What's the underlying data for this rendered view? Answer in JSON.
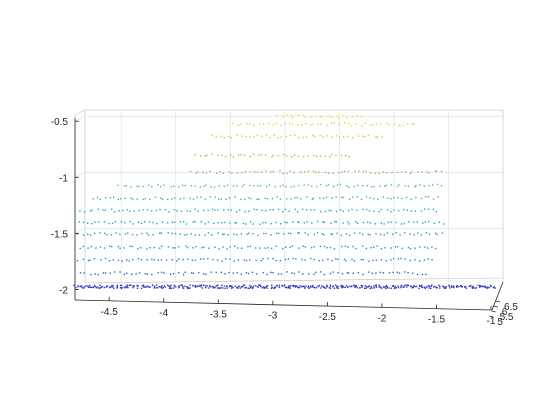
{
  "chart_data": {
    "type": "scatter",
    "title": "",
    "xlabel": "",
    "ylabel": "",
    "zlabel": "",
    "grid": true,
    "colormap": [
      "#3e26a8",
      "#2d67f7",
      "#1c97df",
      "#0fb0bf",
      "#45c18d",
      "#a3bd4f",
      "#eebc34",
      "#f9e21e"
    ],
    "x_ticks": [
      "-4.5",
      "-4",
      "-3.5",
      "-3",
      "-2.5",
      "-2",
      "-1.5",
      "-1"
    ],
    "depth_ticks": [
      "6.5",
      "6",
      "5.5",
      "5"
    ],
    "z_ticks": [
      "-0.5",
      "-1",
      "-1.5",
      "-2"
    ],
    "xlim": [
      -4.85,
      -1.0
    ],
    "zlim": [
      -2.05,
      -0.4
    ],
    "layers": [
      {
        "z": -1.97,
        "x": [
          -4.85,
          -1.0
        ]
      },
      {
        "z": -1.85,
        "x": [
          -4.8,
          -1.6
        ]
      },
      {
        "z": -1.73,
        "x": [
          -4.82,
          -1.55
        ]
      },
      {
        "z": -1.62,
        "x": [
          -4.82,
          -1.5
        ]
      },
      {
        "z": -1.5,
        "x": [
          -4.82,
          -1.45
        ]
      },
      {
        "z": -1.4,
        "x": [
          -4.82,
          -1.45
        ]
      },
      {
        "z": -1.29,
        "x": [
          -4.8,
          -1.5
        ]
      },
      {
        "z": -1.18,
        "x": [
          -4.7,
          -1.5
        ]
      },
      {
        "z": -1.07,
        "x": [
          -4.45,
          -1.45
        ]
      },
      {
        "z": -0.95,
        "x": [
          -3.8,
          -1.45
        ]
      },
      {
        "z": -0.8,
        "x": [
          -3.75,
          -2.3
        ]
      },
      {
        "z": -0.63,
        "x": [
          -3.6,
          -2.0
        ]
      },
      {
        "z": -0.52,
        "x": [
          -3.4,
          -1.7
        ]
      },
      {
        "z": -0.45,
        "x": [
          -3.0,
          -2.2
        ]
      }
    ]
  }
}
